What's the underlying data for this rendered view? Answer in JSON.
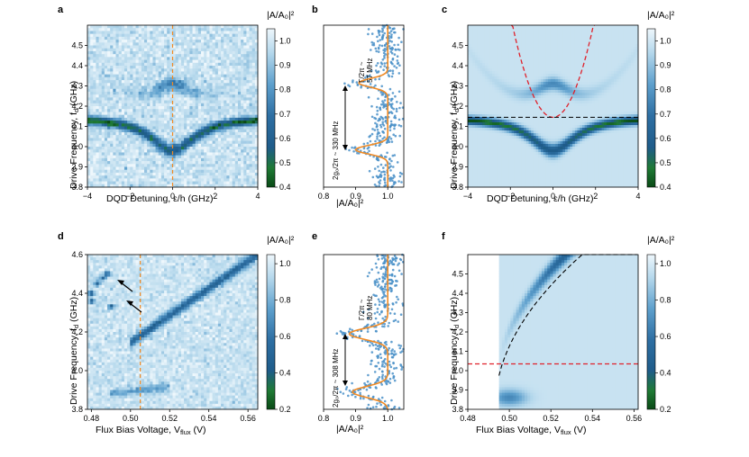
{
  "colors": {
    "cmap": [
      "#0a3d14",
      "#1c7a32",
      "#2e6e9e",
      "#2a5f8f",
      "#5da0cc",
      "#a8d0e6",
      "#e6f3fa"
    ],
    "orange": "#f08a24",
    "red": "#e0202a",
    "black": "#000000"
  },
  "chart_data": [
    {
      "panel": "a",
      "type": "heatmap",
      "title": "",
      "xlabel": "DQD Detuning, ε/h (GHz)",
      "ylabel": "Drive Frequency, f_d (GHz)",
      "xlim": [
        -4,
        4
      ],
      "ylim": [
        3.8,
        4.6
      ],
      "xticks": [
        "−4",
        "−2",
        "0",
        "2",
        "4"
      ],
      "yticks": [
        "3.8",
        "3.9",
        "4.0",
        "4.1",
        "4.2",
        "4.3",
        "4.4",
        "4.5"
      ],
      "cut_at_x": 0,
      "colorbar": {
        "label": "|A/A0|²",
        "range": [
          0.4,
          1.05
        ],
        "ticks": [
          "0.4",
          "0.5",
          "0.6",
          "0.7",
          "0.8",
          "0.9",
          "1.0"
        ]
      }
    },
    {
      "panel": "b",
      "type": "scatter",
      "xlabel": "|A/A0|²",
      "xlim": [
        0.8,
        1.05
      ],
      "ylim": [
        3.8,
        4.6
      ],
      "xticks": [
        "0.8",
        "0.9",
        "1.0"
      ],
      "dips": [
        {
          "y": 4.315,
          "depth": 0.09
        },
        {
          "y": 3.985,
          "depth": 0.1
        }
      ],
      "annotations": [
        "Γ/2π ~",
        "57 MHz",
        "2g0/2π ~ 330 MHz"
      ]
    },
    {
      "panel": "c",
      "type": "heatmap",
      "xlabel": "DQD Detuning, ε/h (GHz)",
      "ylabel": "Drive Frequency, f_d (GHz)",
      "xlim": [
        -4,
        4
      ],
      "ylim": [
        3.8,
        4.6
      ],
      "xticks": [
        "−4",
        "−2",
        "0",
        "2",
        "4"
      ],
      "yticks": [
        "3.8",
        "3.9",
        "4.0",
        "4.1",
        "4.2",
        "4.3",
        "4.4",
        "4.5"
      ],
      "resonator_line_y": 4.145,
      "qubit_curve": "parabola through (0, 4.145), reaching 4.6 at ±1.9",
      "colorbar": {
        "label": "|A/A0|²",
        "range": [
          0.4,
          1.05
        ],
        "ticks": [
          "0.4",
          "0.5",
          "0.6",
          "0.7",
          "0.8",
          "0.9",
          "1.0"
        ]
      }
    },
    {
      "panel": "d",
      "type": "heatmap",
      "xlabel": "Flux Bias Voltage, V_flux (V)",
      "ylabel": "Drive Frequency, f_d (GHz)",
      "xlim": [
        0.478,
        0.565
      ],
      "ylim": [
        3.8,
        4.6
      ],
      "xticks": [
        "0.48",
        "0.50",
        "0.52",
        "0.54",
        "0.56"
      ],
      "yticks": [
        "3.8",
        "4.0",
        "4.2",
        "4.4",
        "4.6"
      ],
      "cut_at_x": 0.505,
      "colorbar": {
        "label": "|A/A0|²",
        "range": [
          0.2,
          1.05
        ],
        "ticks": [
          "0.2",
          "0.4",
          "0.6",
          "0.8",
          "1.0"
        ]
      }
    },
    {
      "panel": "e",
      "type": "scatter",
      "xlabel": "|A/A0|²",
      "xlim": [
        0.8,
        1.05
      ],
      "ylim": [
        3.8,
        4.6
      ],
      "xticks": [
        "0.8",
        "0.9",
        "1.0"
      ],
      "dips": [
        {
          "y": 4.19,
          "depth": 0.12
        },
        {
          "y": 3.89,
          "depth": 0.11
        }
      ],
      "annotations": [
        "Γ/2π ~",
        "80 MHz",
        "2g0/2π ~ 308 MHz"
      ]
    },
    {
      "panel": "f",
      "type": "heatmap",
      "xlabel": "Flux Bias Voltage, V_flux (V)",
      "ylabel": "Drive Frequency, f_d (GHz)",
      "xlim": [
        0.48,
        0.562
      ],
      "ylim": [
        3.8,
        4.6
      ],
      "xticks": [
        "0.48",
        "0.50",
        "0.52",
        "0.54",
        "0.56"
      ],
      "yticks": [
        "3.8",
        "3.9",
        "4.0",
        "4.1",
        "4.2",
        "4.3",
        "4.4",
        "4.5"
      ],
      "resonator_line_y": 4.035,
      "colorbar": {
        "label": "|A/A0|²",
        "range": [
          0.2,
          1.05
        ],
        "ticks": [
          "0.2",
          "0.4",
          "0.6",
          "0.8",
          "1.0"
        ]
      }
    }
  ],
  "labels": {
    "a": "a",
    "b": "b",
    "c": "c",
    "d": "d",
    "e": "e",
    "f": "f",
    "cbar": "|A/A₀|²",
    "ylabel": "Drive Frequency, f",
    "ylabel_sub": "d",
    "ylabel_unit": " (GHz)",
    "xlabel_detune": "DQD Detuning, ε/h (GHz)",
    "xlabel_flux": "Flux Bias Voltage, V",
    "xlabel_flux_sub": "flux",
    "xlabel_flux_unit": " (V)",
    "xlabel_amp": "|A/A₀|²",
    "gamma_b": "Γ/2π ~",
    "gamma_b_val": "57 MHz",
    "g_b": "2g₀/2π ~ 330 MHz",
    "gamma_e": "Γ/2π ~",
    "gamma_e_val": "80 MHz",
    "g_e": "2g₀/2π ~ 308 MHz"
  }
}
